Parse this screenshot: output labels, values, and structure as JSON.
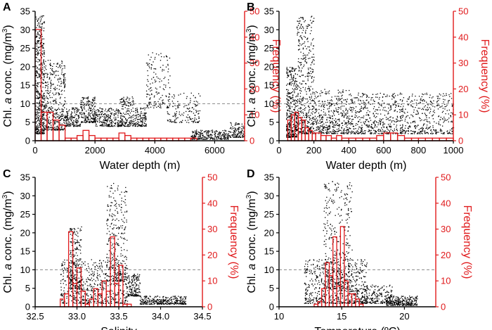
{
  "figure": {
    "colors": {
      "scatter": "#000000",
      "frequency": "#e0191b",
      "axis": "#000000",
      "reference_line": "#888888"
    },
    "y_left_label": "Chl. a conc. (mg/m³)",
    "y_left_label_parts": [
      "Chl. ",
      "a",
      " conc. (mg/m",
      "3",
      ")"
    ],
    "y_right_label": "Frequency (%)"
  },
  "chart_data": [
    {
      "panel": "A",
      "type": "scatter+histogram",
      "xlabel": "Water depth (m)",
      "xlim": [
        0,
        7000
      ],
      "xticks": [
        0,
        2000,
        4000,
        6000
      ],
      "xtick_labels": [
        "0",
        "2000",
        "4000",
        "6000"
      ],
      "ylim_left": [
        0,
        35
      ],
      "yticks_left": [
        0,
        5,
        10,
        15,
        20,
        25,
        30,
        35
      ],
      "ylim_right": [
        0,
        50
      ],
      "yticks_right": [
        0,
        10,
        20,
        30,
        40,
        50
      ],
      "reference_line_chl": 10,
      "histogram": {
        "bins": [
          [
            0,
            200,
            43
          ],
          [
            200,
            400,
            11
          ],
          [
            400,
            600,
            11
          ],
          [
            600,
            800,
            8
          ],
          [
            800,
            1000,
            6
          ],
          [
            1000,
            1200,
            1
          ],
          [
            1200,
            1400,
            1
          ],
          [
            1400,
            1600,
            2
          ],
          [
            1600,
            1800,
            4
          ],
          [
            1800,
            2000,
            2
          ],
          [
            2000,
            2200,
            1
          ],
          [
            2200,
            2400,
            1
          ],
          [
            2400,
            2600,
            1
          ],
          [
            2600,
            2800,
            1
          ],
          [
            2800,
            3000,
            3
          ],
          [
            3000,
            3200,
            2
          ],
          [
            3200,
            3400,
            1
          ],
          [
            3400,
            3600,
            1
          ],
          [
            3600,
            3800,
            1
          ],
          [
            3800,
            4000,
            1
          ],
          [
            4000,
            4200,
            1
          ],
          [
            4200,
            4400,
            1
          ],
          [
            4400,
            4600,
            1
          ],
          [
            4600,
            4800,
            1
          ],
          [
            4800,
            5000,
            1
          ],
          [
            5000,
            5200,
            1
          ],
          [
            5200,
            5400,
            1
          ]
        ]
      },
      "scatter_regions": [
        [
          0,
          300,
          2,
          34,
          520
        ],
        [
          300,
          1000,
          3,
          22,
          420
        ],
        [
          1000,
          1500,
          4,
          9,
          160
        ],
        [
          1500,
          2000,
          5,
          12,
          200
        ],
        [
          2000,
          2800,
          4,
          9,
          220
        ],
        [
          2800,
          3300,
          4,
          12,
          180
        ],
        [
          3300,
          3700,
          4,
          9,
          120
        ],
        [
          3700,
          4500,
          9,
          24,
          160
        ],
        [
          4400,
          5500,
          5,
          13,
          150
        ],
        [
          5200,
          6500,
          0.5,
          3,
          260
        ],
        [
          6500,
          7000,
          1,
          5,
          120
        ]
      ]
    },
    {
      "panel": "B",
      "type": "scatter+histogram",
      "xlabel": "Water depth (m)",
      "xlim": [
        0,
        1000
      ],
      "xticks": [
        0,
        200,
        400,
        600,
        800,
        1000
      ],
      "xtick_labels": [
        "0",
        "200",
        "400",
        "600",
        "800",
        "1000"
      ],
      "ylim_left": [
        0,
        35
      ],
      "yticks_left": [
        0,
        5,
        10,
        15,
        20,
        25,
        30,
        35
      ],
      "ylim_right": [
        0,
        50
      ],
      "yticks_right": [
        0,
        10,
        20,
        30,
        40,
        50
      ],
      "reference_line_chl": 10,
      "histogram": {
        "bins": [
          [
            50,
            70,
            8
          ],
          [
            70,
            90,
            10
          ],
          [
            90,
            110,
            11
          ],
          [
            110,
            130,
            9
          ],
          [
            130,
            150,
            8
          ],
          [
            150,
            170,
            5
          ],
          [
            170,
            190,
            4
          ],
          [
            190,
            210,
            3
          ],
          [
            210,
            240,
            3
          ],
          [
            240,
            270,
            2
          ],
          [
            270,
            300,
            2
          ],
          [
            300,
            330,
            1
          ],
          [
            330,
            360,
            2
          ],
          [
            360,
            400,
            1
          ],
          [
            400,
            440,
            1
          ],
          [
            440,
            480,
            1
          ],
          [
            480,
            520,
            1
          ],
          [
            520,
            560,
            1
          ],
          [
            560,
            600,
            2
          ],
          [
            600,
            640,
            3
          ],
          [
            640,
            680,
            3
          ],
          [
            680,
            720,
            2
          ],
          [
            720,
            760,
            1
          ],
          [
            760,
            800,
            1
          ],
          [
            800,
            840,
            1
          ],
          [
            840,
            880,
            1
          ],
          [
            880,
            920,
            1
          ],
          [
            920,
            960,
            1
          ],
          [
            960,
            1000,
            1
          ]
        ]
      },
      "scatter_regions": [
        [
          40,
          100,
          1,
          20,
          380
        ],
        [
          100,
          200,
          2,
          34,
          460
        ],
        [
          200,
          400,
          2,
          14,
          420
        ],
        [
          400,
          700,
          2,
          13,
          480
        ],
        [
          700,
          1000,
          2,
          13,
          380
        ]
      ]
    },
    {
      "panel": "C",
      "type": "scatter+histogram",
      "xlabel": "Salinity",
      "xlim": [
        32.5,
        34.5
      ],
      "xticks": [
        32.5,
        33.0,
        33.5,
        34.0,
        34.5
      ],
      "xtick_labels": [
        "32.5",
        "33.0",
        "33.5",
        "34.0",
        "34.5"
      ],
      "ylim_left": [
        0,
        35
      ],
      "yticks_left": [
        0,
        5,
        10,
        15,
        20,
        25,
        30,
        35
      ],
      "ylim_right": [
        0,
        50
      ],
      "yticks_right": [
        0,
        10,
        20,
        30,
        40,
        50
      ],
      "reference_line_chl": 10,
      "histogram": {
        "bins": [
          [
            32.8,
            32.85,
            3
          ],
          [
            32.85,
            32.9,
            5
          ],
          [
            32.9,
            32.95,
            29
          ],
          [
            32.95,
            33.0,
            9
          ],
          [
            33.0,
            33.05,
            15
          ],
          [
            33.05,
            33.1,
            6
          ],
          [
            33.1,
            33.15,
            1
          ],
          [
            33.15,
            33.2,
            3
          ],
          [
            33.2,
            33.25,
            7
          ],
          [
            33.25,
            33.3,
            5
          ],
          [
            33.3,
            33.35,
            10
          ],
          [
            33.35,
            33.4,
            6
          ],
          [
            33.4,
            33.45,
            27
          ],
          [
            33.45,
            33.5,
            9
          ],
          [
            33.5,
            33.55,
            16
          ],
          [
            33.55,
            33.6,
            1
          ],
          [
            33.6,
            33.65,
            1
          ]
        ]
      },
      "scatter_regions": [
        [
          32.8,
          33.6,
          1,
          13,
          620
        ],
        [
          32.9,
          33.05,
          5,
          22,
          220
        ],
        [
          33.35,
          33.6,
          7,
          34,
          300
        ],
        [
          33.6,
          33.75,
          3,
          9,
          150
        ],
        [
          33.75,
          34.3,
          0.8,
          3,
          300
        ]
      ]
    },
    {
      "panel": "D",
      "type": "scatter+histogram",
      "xlabel": "Temperature (ºC)",
      "xlim": [
        10,
        22.5
      ],
      "xticks": [
        10,
        15,
        20
      ],
      "xtick_labels": [
        "10",
        "15",
        "20"
      ],
      "ylim_left": [
        0,
        35
      ],
      "yticks_left": [
        0,
        5,
        10,
        15,
        20,
        25,
        30,
        35
      ],
      "ylim_right": [
        0,
        50
      ],
      "yticks_right": [
        0,
        10,
        20,
        30,
        40,
        50
      ],
      "reference_line_chl": 10,
      "histogram": {
        "bins": [
          [
            12.8,
            13.1,
            1
          ],
          [
            13.1,
            13.4,
            2
          ],
          [
            13.4,
            13.7,
            7
          ],
          [
            13.7,
            14.0,
            17
          ],
          [
            14.0,
            14.3,
            12
          ],
          [
            14.3,
            14.6,
            27
          ],
          [
            14.6,
            14.9,
            8
          ],
          [
            14.9,
            15.2,
            31
          ],
          [
            15.2,
            15.5,
            10
          ],
          [
            15.5,
            15.8,
            5
          ],
          [
            15.8,
            16.1,
            5
          ],
          [
            16.1,
            16.4,
            3
          ],
          [
            16.4,
            16.7,
            1
          ]
        ]
      },
      "scatter_regions": [
        [
          12.0,
          17.0,
          1,
          13,
          650
        ],
        [
          13.5,
          15.8,
          5,
          34,
          360
        ],
        [
          16.5,
          19.0,
          1,
          6,
          200
        ],
        [
          18.5,
          21.0,
          0.5,
          3,
          260
        ]
      ]
    }
  ]
}
